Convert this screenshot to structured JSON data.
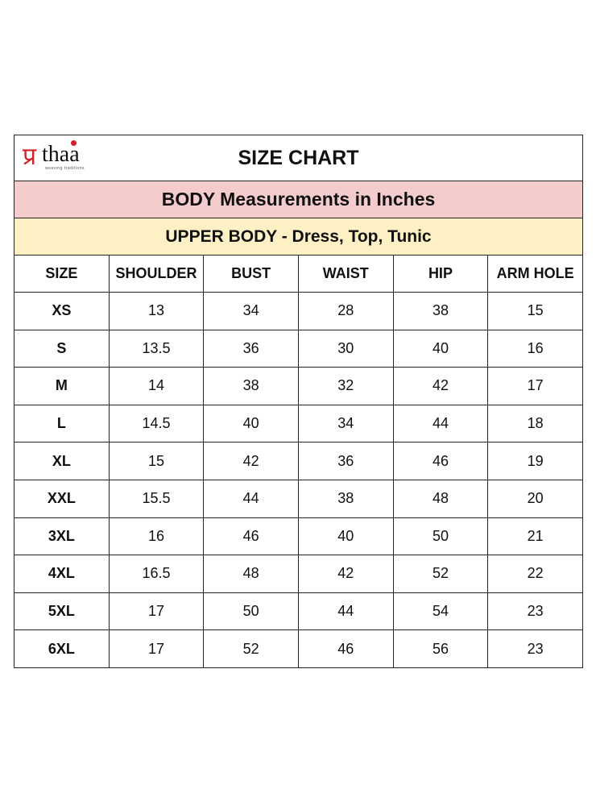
{
  "logo": {
    "mark": "प्र",
    "text": "thaa",
    "tagline": "weaving traditions",
    "accent": "#d0222a"
  },
  "title": "SIZE CHART",
  "subtitle": "BODY Measurements in Inches",
  "section": "UPPER BODY - Dress, Top, Tunic",
  "columns": [
    "SIZE",
    "SHOULDER",
    "BUST",
    "WAIST",
    "HIP",
    "ARM HOLE"
  ],
  "rows": [
    [
      "XS",
      "13",
      "34",
      "28",
      "38",
      "15"
    ],
    [
      "S",
      "13.5",
      "36",
      "30",
      "40",
      "16"
    ],
    [
      "M",
      "14",
      "38",
      "32",
      "42",
      "17"
    ],
    [
      "L",
      "14.5",
      "40",
      "34",
      "44",
      "18"
    ],
    [
      "XL",
      "15",
      "42",
      "36",
      "46",
      "19"
    ],
    [
      "XXL",
      "15.5",
      "44",
      "38",
      "48",
      "20"
    ],
    [
      "3XL",
      "16",
      "46",
      "40",
      "50",
      "21"
    ],
    [
      "4XL",
      "16.5",
      "48",
      "42",
      "52",
      "22"
    ],
    [
      "5XL",
      "17",
      "50",
      "44",
      "54",
      "23"
    ],
    [
      "6XL",
      "17",
      "52",
      "46",
      "56",
      "23"
    ]
  ]
}
